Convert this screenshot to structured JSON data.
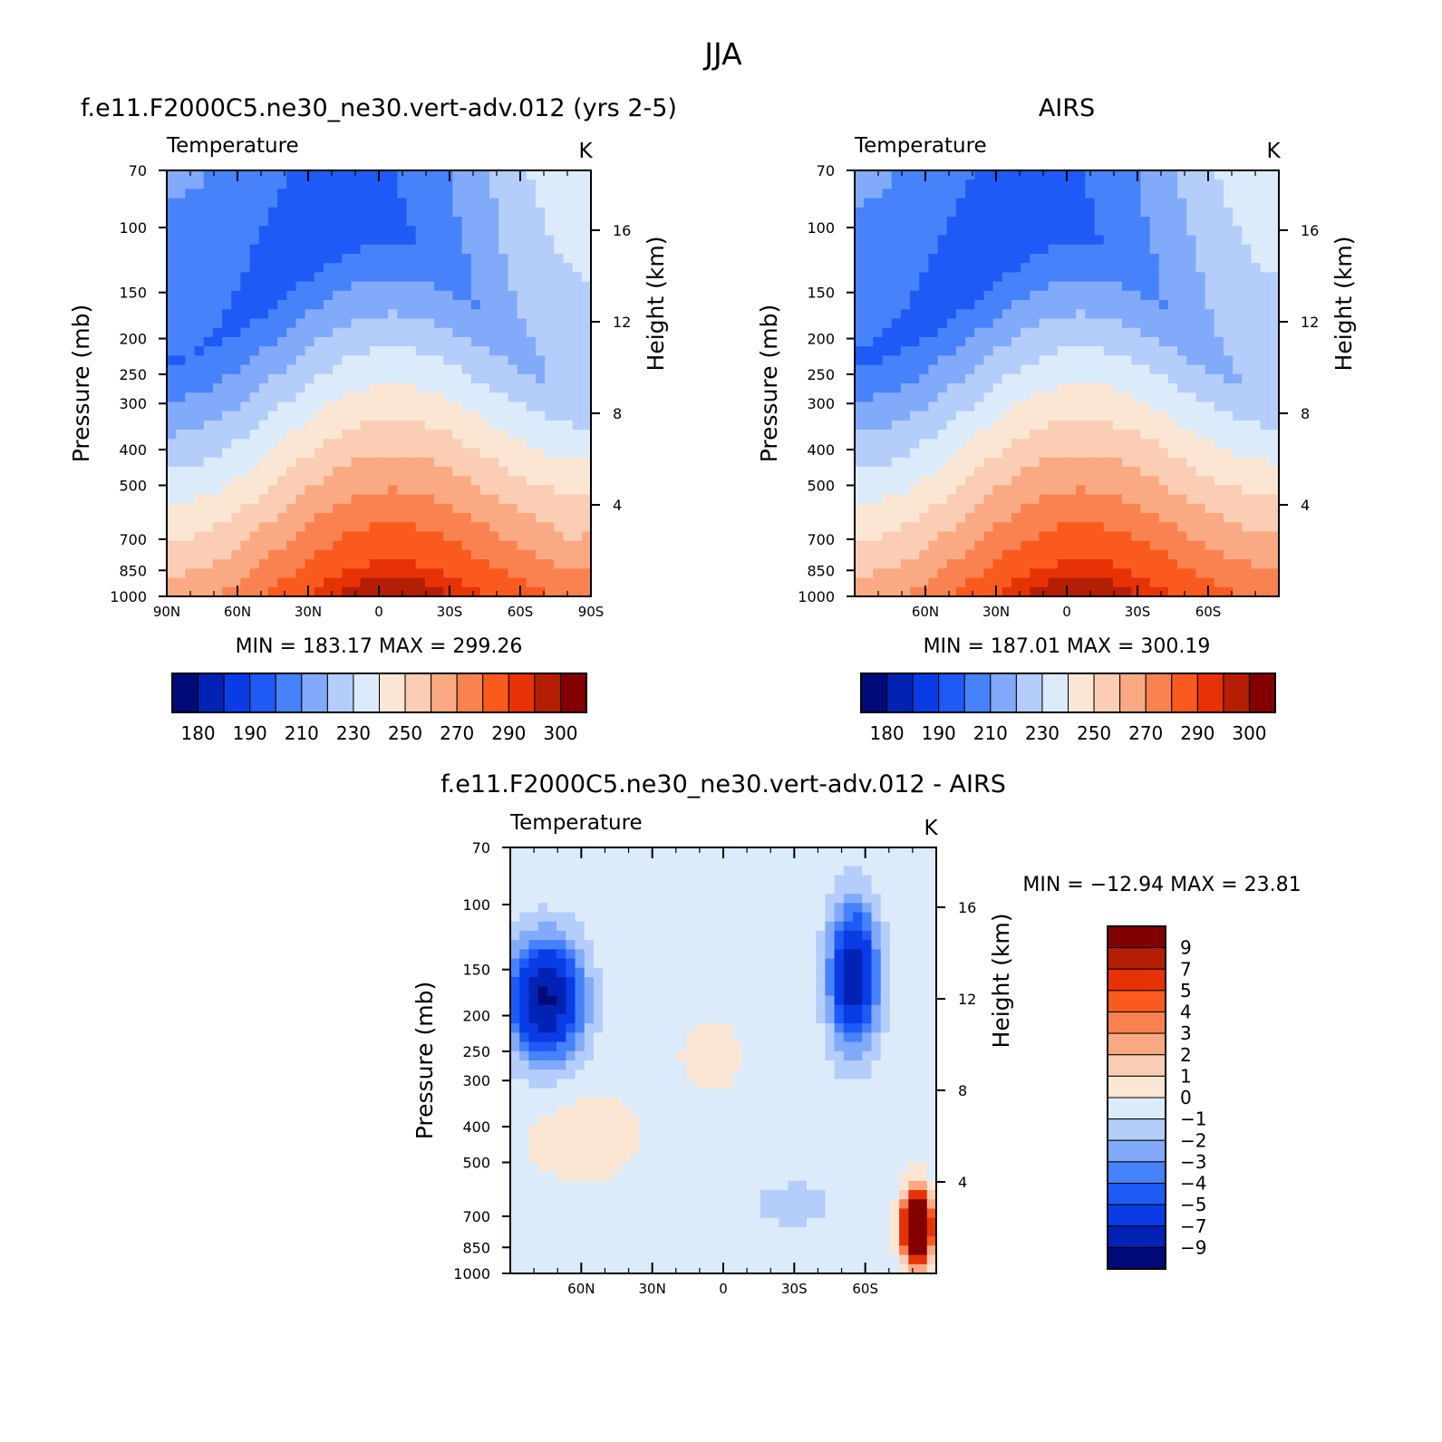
{
  "figure": {
    "title": "JJA"
  },
  "chart_data": [
    {
      "id": "model",
      "type": "heatmap",
      "title": "f.e11.F2000C5.ne30_ne30.vert-adv.012 (yrs 2-5)",
      "subtitle": "Temperature",
      "units": "K",
      "xlabel": "",
      "ylabel": "Pressure (mb)",
      "ylabel_right": "Height (km)",
      "x_ticks": [
        "90N",
        "60N",
        "30N",
        "0",
        "30S",
        "60S",
        "90S"
      ],
      "x_tick_values": [
        90,
        60,
        30,
        0,
        -30,
        -60,
        -90
      ],
      "y_ticks": [
        "70",
        "100",
        "150",
        "200",
        "250",
        "300",
        "400",
        "500",
        "700",
        "850",
        "1000"
      ],
      "y_tick_values": [
        70,
        100,
        150,
        200,
        250,
        300,
        400,
        500,
        700,
        850,
        1000
      ],
      "right_ticks": [
        "4",
        "8",
        "12",
        "16"
      ],
      "right_tick_values": [
        4,
        8,
        12,
        16
      ],
      "min": "183.17",
      "max": "299.26",
      "stats": {
        "min_label": "MIN",
        "eq": "=",
        "max_label": "MAX"
      },
      "colorbar_labels": [
        "180",
        "190",
        "210",
        "230",
        "250",
        "270",
        "290",
        "300"
      ],
      "grid": false
    },
    {
      "id": "obs",
      "type": "heatmap",
      "title": "AIRS",
      "subtitle": "Temperature",
      "units": "K",
      "xlabel": "",
      "ylabel": "Pressure (mb)",
      "ylabel_right": "Height (km)",
      "x_ticks": [
        "60N",
        "30N",
        "0",
        "30S",
        "60S"
      ],
      "x_tick_values": [
        60,
        30,
        0,
        -30,
        -60
      ],
      "y_ticks": [
        "70",
        "100",
        "150",
        "200",
        "250",
        "300",
        "400",
        "500",
        "700",
        "850",
        "1000"
      ],
      "y_tick_values": [
        70,
        100,
        150,
        200,
        250,
        300,
        400,
        500,
        700,
        850,
        1000
      ],
      "right_ticks": [
        "4",
        "8",
        "12",
        "16"
      ],
      "right_tick_values": [
        4,
        8,
        12,
        16
      ],
      "min": "187.01",
      "max": "300.19",
      "stats": {
        "min_label": "MIN",
        "eq": "=",
        "max_label": "MAX"
      },
      "colorbar_labels": [
        "180",
        "190",
        "210",
        "230",
        "250",
        "270",
        "290",
        "300"
      ],
      "grid": false
    },
    {
      "id": "diff",
      "type": "heatmap",
      "title": "f.e11.F2000C5.ne30_ne30.vert-adv.012 - AIRS",
      "subtitle": "Temperature",
      "units": "K",
      "xlabel": "",
      "ylabel": "Pressure (mb)",
      "ylabel_right": "Height (km)",
      "x_ticks": [
        "60N",
        "30N",
        "0",
        "30S",
        "60S"
      ],
      "x_tick_values": [
        60,
        30,
        0,
        -30,
        -60
      ],
      "y_ticks": [
        "70",
        "100",
        "150",
        "200",
        "250",
        "300",
        "400",
        "500",
        "700",
        "850",
        "1000"
      ],
      "y_tick_values": [
        70,
        100,
        150,
        200,
        250,
        300,
        400,
        500,
        700,
        850,
        1000
      ],
      "right_ticks": [
        "4",
        "8",
        "12",
        "16"
      ],
      "right_tick_values": [
        4,
        8,
        12,
        16
      ],
      "min": "-12.94",
      "max": "23.81",
      "stats": {
        "min_label": "MIN",
        "eq": "=",
        "max_label": "MAX"
      },
      "colorbar_labels": [
        "9",
        "7",
        "5",
        "4",
        "3",
        "2",
        "1",
        "0",
        "-1",
        "-2",
        "-3",
        "-4",
        "-5",
        "-7",
        "-9"
      ],
      "grid": false
    }
  ],
  "colors": {
    "temperature_scale": [
      "#000a78",
      "#0023b4",
      "#0a3ce6",
      "#1e5af5",
      "#4682fa",
      "#82aafa",
      "#b4cdfa",
      "#dcebfa",
      "#fae6d2",
      "#facdb4",
      "#faaa82",
      "#fa8250",
      "#fa5a1e",
      "#e63205",
      "#b41e05",
      "#820000"
    ],
    "difference_scale": [
      "#820000",
      "#b41e05",
      "#e63205",
      "#fa5a1e",
      "#fa8250",
      "#faaa82",
      "#facdb4",
      "#fae6d2",
      "#dcebfa",
      "#b4cdfa",
      "#82aafa",
      "#4682fa",
      "#1e5af5",
      "#0a3ce6",
      "#0023b4",
      "#000a78"
    ]
  }
}
